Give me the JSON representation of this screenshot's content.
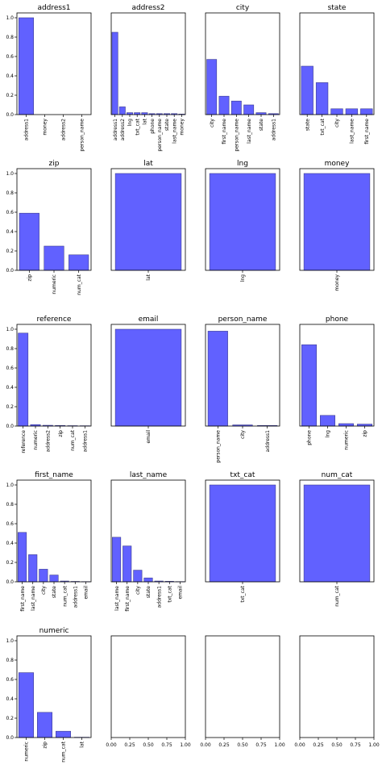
{
  "figure": {
    "bar_color": "#6161ff",
    "bar_edge_color": "#3e3e8f",
    "background": "#ffffff"
  },
  "chart_data": [
    {
      "type": "bar",
      "title": "address1",
      "categories": [
        "address1",
        "money",
        "address2",
        "person_name"
      ],
      "values": [
        1.0,
        0.0,
        0.0,
        0.0
      ],
      "ylim": [
        0,
        1.05
      ],
      "yticks": [
        "0.0",
        "0.2",
        "0.4",
        "0.6",
        "0.8",
        "1.0"
      ],
      "show_yticks": true
    },
    {
      "type": "bar",
      "title": "address2",
      "categories": [
        "address1",
        "address2",
        "lng",
        "txt_cat",
        "lat",
        "phone",
        "person_name",
        "state",
        "last_name",
        "money"
      ],
      "values": [
        0.85,
        0.08,
        0.02,
        0.02,
        0.02,
        0.01,
        0.01,
        0.01,
        0.01,
        0.005
      ],
      "ylim": [
        0,
        1.05
      ],
      "show_yticks": false
    },
    {
      "type": "bar",
      "title": "city",
      "categories": [
        "city",
        "first_name",
        "person_name",
        "last_name",
        "state",
        "address1"
      ],
      "values": [
        0.57,
        0.19,
        0.14,
        0.1,
        0.02,
        0.01
      ],
      "ylim": [
        0,
        1.05
      ],
      "show_yticks": false
    },
    {
      "type": "bar",
      "title": "state",
      "categories": [
        "state",
        "txt_cat",
        "city",
        "last_name",
        "first_name"
      ],
      "values": [
        0.5,
        0.33,
        0.06,
        0.06,
        0.06
      ],
      "ylim": [
        0,
        1.05
      ],
      "show_yticks": false
    },
    {
      "type": "bar",
      "title": "zip",
      "categories": [
        "zip",
        "numeric",
        "num_cat"
      ],
      "values": [
        0.59,
        0.25,
        0.16
      ],
      "ylim": [
        0,
        1.05
      ],
      "yticks": [
        "0.0",
        "0.2",
        "0.4",
        "0.6",
        "0.8",
        "1.0"
      ],
      "show_yticks": true
    },
    {
      "type": "bar",
      "title": "lat",
      "categories": [
        "lat"
      ],
      "values": [
        1.0
      ],
      "ylim": [
        0,
        1.05
      ],
      "show_yticks": false
    },
    {
      "type": "bar",
      "title": "lng",
      "categories": [
        "lng"
      ],
      "values": [
        1.0
      ],
      "ylim": [
        0,
        1.05
      ],
      "show_yticks": false
    },
    {
      "type": "bar",
      "title": "money",
      "categories": [
        "money"
      ],
      "values": [
        1.0
      ],
      "ylim": [
        0,
        1.05
      ],
      "show_yticks": false
    },
    {
      "type": "bar",
      "title": "reference",
      "categories": [
        "reference",
        "numeric",
        "address2",
        "zip",
        "num_cat",
        "address1"
      ],
      "values": [
        0.96,
        0.015,
        0.008,
        0.006,
        0.004,
        0.003
      ],
      "ylim": [
        0,
        1.05
      ],
      "yticks": [
        "0.0",
        "0.2",
        "0.4",
        "0.6",
        "0.8",
        "1.0"
      ],
      "show_yticks": true
    },
    {
      "type": "bar",
      "title": "email",
      "categories": [
        "email"
      ],
      "values": [
        1.0
      ],
      "ylim": [
        0,
        1.05
      ],
      "show_yticks": false
    },
    {
      "type": "bar",
      "title": "person_name",
      "categories": [
        "person_name",
        "city",
        "address1"
      ],
      "values": [
        0.98,
        0.012,
        0.006
      ],
      "ylim": [
        0,
        1.05
      ],
      "show_yticks": false
    },
    {
      "type": "bar",
      "title": "phone",
      "categories": [
        "phone",
        "lng",
        "numeric",
        "zip"
      ],
      "values": [
        0.84,
        0.11,
        0.025,
        0.02
      ],
      "ylim": [
        0,
        1.05
      ],
      "show_yticks": false
    },
    {
      "type": "bar",
      "title": "first_name",
      "categories": [
        "first_name",
        "last_name",
        "city",
        "state",
        "num_cat",
        "address1",
        "email"
      ],
      "values": [
        0.51,
        0.28,
        0.13,
        0.07,
        0.008,
        0.004,
        0.002
      ],
      "ylim": [
        0,
        1.05
      ],
      "yticks": [
        "0.0",
        "0.2",
        "0.4",
        "0.6",
        "0.8",
        "1.0"
      ],
      "show_yticks": true
    },
    {
      "type": "bar",
      "title": "last_name",
      "categories": [
        "last_name",
        "first_name",
        "city",
        "state",
        "address1",
        "txt_cat",
        "email"
      ],
      "values": [
        0.46,
        0.37,
        0.12,
        0.04,
        0.008,
        0.005,
        0.002
      ],
      "ylim": [
        0,
        1.05
      ],
      "show_yticks": false
    },
    {
      "type": "bar",
      "title": "txt_cat",
      "categories": [
        "txt_cat"
      ],
      "values": [
        1.0
      ],
      "ylim": [
        0,
        1.05
      ],
      "show_yticks": false
    },
    {
      "type": "bar",
      "title": "num_cat",
      "categories": [
        "num_cat"
      ],
      "values": [
        1.0
      ],
      "ylim": [
        0,
        1.05
      ],
      "show_yticks": false
    },
    {
      "type": "bar",
      "title": "numeric",
      "categories": [
        "numeric",
        "zip",
        "num_cat",
        "lat"
      ],
      "values": [
        0.67,
        0.26,
        0.065,
        0.003
      ],
      "ylim": [
        0,
        1.05
      ],
      "yticks": [
        "0.0",
        "0.2",
        "0.4",
        "0.6",
        "0.8",
        "1.0"
      ],
      "show_yticks": true
    },
    {
      "type": "empty",
      "title": "",
      "categories": [],
      "values": [],
      "xlim": [
        0,
        1
      ],
      "xticks": [
        "0.00",
        "0.25",
        "0.50",
        "0.75",
        "1.00"
      ],
      "ylim": [
        0,
        1.05
      ],
      "show_yticks": false
    },
    {
      "type": "empty",
      "title": "",
      "categories": [],
      "values": [],
      "xlim": [
        0,
        1
      ],
      "xticks": [
        "0.00",
        "0.25",
        "0.50",
        "0.75",
        "1.00"
      ],
      "ylim": [
        0,
        1.05
      ],
      "show_yticks": false
    },
    {
      "type": "empty",
      "title": "",
      "categories": [],
      "values": [],
      "xlim": [
        0,
        1
      ],
      "xticks": [
        "0.00",
        "0.25",
        "0.50",
        "0.75",
        "1.00"
      ],
      "ylim": [
        0,
        1.05
      ],
      "show_yticks": false
    }
  ]
}
